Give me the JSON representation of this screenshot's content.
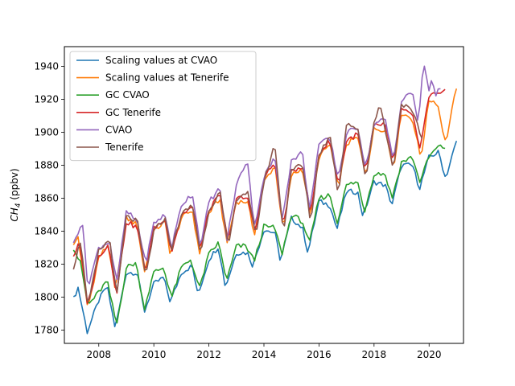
{
  "chart_data": {
    "type": "line",
    "title": "",
    "xlabel": "",
    "ylabel": {
      "main": "CH",
      "sub": "4",
      "unit": " (ppbv)"
    },
    "xlim": [
      2006.75,
      2021.25
    ],
    "ylim": [
      1772,
      1952
    ],
    "xticks": [
      2008,
      2010,
      2012,
      2014,
      2016,
      2018,
      2020
    ],
    "xtick_labels": [
      "2008",
      "2010",
      "2012",
      "2014",
      "2016",
      "2018",
      "2020"
    ],
    "yticks": [
      1780,
      1800,
      1820,
      1840,
      1860,
      1880,
      1900,
      1920,
      1940
    ],
    "ytick_labels": [
      "1780",
      "1800",
      "1820",
      "1840",
      "1860",
      "1880",
      "1900",
      "1920",
      "1940"
    ],
    "grid": false,
    "legend_position": "top-left",
    "series": [
      {
        "name": "Scaling values at CVAO",
        "color": "#1f77b4",
        "start": 2007.08,
        "end": 2021.0,
        "amp": 10.0,
        "phase": -0.6,
        "points": [
          [
            2007.08,
            1799
          ],
          [
            2007.25,
            1806
          ],
          [
            2007.58,
            1779
          ],
          [
            2008.0,
            1798
          ],
          [
            2008.3,
            1807
          ],
          [
            2008.6,
            1781
          ],
          [
            2009.0,
            1815
          ],
          [
            2009.4,
            1815
          ],
          [
            2009.65,
            1791
          ],
          [
            2010.0,
            1808
          ],
          [
            2010.35,
            1812
          ],
          [
            2010.6,
            1797
          ],
          [
            2011.0,
            1815
          ],
          [
            2011.4,
            1819
          ],
          [
            2011.6,
            1801
          ],
          [
            2012.0,
            1823
          ],
          [
            2012.35,
            1831
          ],
          [
            2012.6,
            1806
          ],
          [
            2013.0,
            1827
          ],
          [
            2013.4,
            1827
          ],
          [
            2013.6,
            1819
          ],
          [
            2014.0,
            1841
          ],
          [
            2014.4,
            1839
          ],
          [
            2014.6,
            1822
          ],
          [
            2015.0,
            1848
          ],
          [
            2015.4,
            1842
          ],
          [
            2015.6,
            1827
          ],
          [
            2016.0,
            1858
          ],
          [
            2016.4,
            1856
          ],
          [
            2016.65,
            1841
          ],
          [
            2017.0,
            1864
          ],
          [
            2017.4,
            1864
          ],
          [
            2017.6,
            1849
          ],
          [
            2018.0,
            1870
          ],
          [
            2018.4,
            1868
          ],
          [
            2018.65,
            1856
          ],
          [
            2019.0,
            1880
          ],
          [
            2019.4,
            1880
          ],
          [
            2019.65,
            1866
          ],
          [
            2020.0,
            1885
          ],
          [
            2020.35,
            1888
          ],
          [
            2020.6,
            1872
          ],
          [
            2021.0,
            1895
          ]
        ]
      },
      {
        "name": "Scaling values at Tenerife",
        "color": "#ff7f0e",
        "start": 2007.08,
        "end": 2021.0,
        "amp": 12.0,
        "phase": -0.3,
        "points": [
          [
            2007.08,
            1831
          ],
          [
            2007.25,
            1837
          ],
          [
            2007.6,
            1793
          ],
          [
            2008.0,
            1824
          ],
          [
            2008.35,
            1832
          ],
          [
            2008.6,
            1803
          ],
          [
            2009.0,
            1848
          ],
          [
            2009.4,
            1844
          ],
          [
            2009.65,
            1815
          ],
          [
            2010.0,
            1840
          ],
          [
            2010.4,
            1846
          ],
          [
            2010.6,
            1826
          ],
          [
            2011.0,
            1848
          ],
          [
            2011.4,
            1853
          ],
          [
            2011.65,
            1826
          ],
          [
            2012.0,
            1851
          ],
          [
            2012.4,
            1860
          ],
          [
            2012.65,
            1832
          ],
          [
            2013.0,
            1858
          ],
          [
            2013.4,
            1858
          ],
          [
            2013.65,
            1838
          ],
          [
            2014.0,
            1870
          ],
          [
            2014.4,
            1880
          ],
          [
            2014.7,
            1840
          ],
          [
            2015.0,
            1874
          ],
          [
            2015.4,
            1878
          ],
          [
            2015.7,
            1848
          ],
          [
            2016.0,
            1885
          ],
          [
            2016.4,
            1893
          ],
          [
            2016.7,
            1866
          ],
          [
            2017.0,
            1893
          ],
          [
            2017.4,
            1897
          ],
          [
            2017.7,
            1874
          ],
          [
            2018.0,
            1902
          ],
          [
            2018.4,
            1902
          ],
          [
            2018.7,
            1878
          ],
          [
            2019.0,
            1912
          ],
          [
            2019.4,
            1908
          ],
          [
            2019.7,
            1884
          ],
          [
            2020.0,
            1920
          ],
          [
            2020.3,
            1918
          ],
          [
            2020.6,
            1893
          ],
          [
            2021.0,
            1928
          ]
        ]
      },
      {
        "name": "GC CVAO",
        "color": "#2ca02c",
        "start": 2007.08,
        "end": 2020.6,
        "amp": 10.0,
        "phase": -0.6,
        "points": [
          [
            2007.08,
            1830
          ],
          [
            2007.35,
            1820
          ],
          [
            2007.6,
            1795
          ],
          [
            2008.0,
            1803
          ],
          [
            2008.3,
            1810
          ],
          [
            2008.65,
            1783
          ],
          [
            2009.0,
            1818
          ],
          [
            2009.35,
            1821
          ],
          [
            2009.65,
            1793
          ],
          [
            2010.0,
            1815
          ],
          [
            2010.35,
            1818
          ],
          [
            2010.65,
            1800
          ],
          [
            2011.0,
            1818
          ],
          [
            2011.35,
            1823
          ],
          [
            2011.65,
            1805
          ],
          [
            2012.0,
            1826
          ],
          [
            2012.35,
            1833
          ],
          [
            2012.65,
            1810
          ],
          [
            2013.0,
            1831
          ],
          [
            2013.35,
            1831
          ],
          [
            2013.65,
            1822
          ],
          [
            2014.0,
            1843
          ],
          [
            2014.4,
            1842
          ],
          [
            2014.65,
            1826
          ],
          [
            2015.0,
            1850
          ],
          [
            2015.4,
            1846
          ],
          [
            2015.65,
            1832
          ],
          [
            2016.0,
            1860
          ],
          [
            2016.4,
            1862
          ],
          [
            2016.65,
            1845
          ],
          [
            2017.0,
            1868
          ],
          [
            2017.4,
            1870
          ],
          [
            2017.65,
            1852
          ],
          [
            2018.0,
            1875
          ],
          [
            2018.4,
            1875
          ],
          [
            2018.65,
            1860
          ],
          [
            2019.0,
            1882
          ],
          [
            2019.4,
            1885
          ],
          [
            2019.65,
            1870
          ],
          [
            2020.0,
            1885
          ],
          [
            2020.3,
            1891
          ],
          [
            2020.6,
            1891
          ]
        ]
      },
      {
        "name": "GC Tenerife",
        "color": "#d62728",
        "start": 2007.08,
        "end": 2020.6,
        "amp": 12.0,
        "phase": -0.3,
        "points": [
          [
            2007.08,
            1825
          ],
          [
            2007.3,
            1833
          ],
          [
            2007.6,
            1795
          ],
          [
            2008.0,
            1825
          ],
          [
            2008.35,
            1832
          ],
          [
            2008.65,
            1802
          ],
          [
            2009.0,
            1846
          ],
          [
            2009.4,
            1842
          ],
          [
            2009.7,
            1815
          ],
          [
            2010.0,
            1842
          ],
          [
            2010.4,
            1847
          ],
          [
            2010.65,
            1828
          ],
          [
            2011.0,
            1850
          ],
          [
            2011.4,
            1855
          ],
          [
            2011.7,
            1829
          ],
          [
            2012.0,
            1853
          ],
          [
            2012.4,
            1862
          ],
          [
            2012.7,
            1833
          ],
          [
            2013.0,
            1860
          ],
          [
            2013.4,
            1860
          ],
          [
            2013.7,
            1840
          ],
          [
            2014.0,
            1872
          ],
          [
            2014.4,
            1882
          ],
          [
            2014.7,
            1842
          ],
          [
            2015.0,
            1876
          ],
          [
            2015.4,
            1880
          ],
          [
            2015.7,
            1850
          ],
          [
            2016.0,
            1887
          ],
          [
            2016.4,
            1895
          ],
          [
            2016.7,
            1868
          ],
          [
            2017.0,
            1895
          ],
          [
            2017.4,
            1899
          ],
          [
            2017.7,
            1876
          ],
          [
            2018.0,
            1904
          ],
          [
            2018.4,
            1905
          ],
          [
            2018.7,
            1881
          ],
          [
            2019.0,
            1914
          ],
          [
            2019.4,
            1910
          ],
          [
            2019.65,
            1890
          ],
          [
            2020.0,
            1922
          ],
          [
            2020.3,
            1924
          ],
          [
            2020.6,
            1926
          ]
        ]
      },
      {
        "name": "CVAO",
        "color": "#9467bd",
        "start": 2007.08,
        "end": 2020.45,
        "amp": 12.0,
        "phase": -0.3,
        "points": [
          [
            2007.08,
            1832
          ],
          [
            2007.4,
            1847
          ],
          [
            2007.6,
            1806
          ],
          [
            2008.0,
            1830
          ],
          [
            2008.4,
            1834
          ],
          [
            2008.65,
            1808
          ],
          [
            2009.0,
            1852
          ],
          [
            2009.4,
            1846
          ],
          [
            2009.7,
            1820
          ],
          [
            2010.0,
            1845
          ],
          [
            2010.4,
            1850
          ],
          [
            2010.65,
            1830
          ],
          [
            2011.0,
            1856
          ],
          [
            2011.4,
            1863
          ],
          [
            2011.7,
            1830
          ],
          [
            2012.0,
            1858
          ],
          [
            2012.4,
            1866
          ],
          [
            2012.65,
            1834
          ],
          [
            2013.0,
            1868
          ],
          [
            2013.4,
            1884
          ],
          [
            2013.65,
            1842
          ],
          [
            2014.0,
            1873
          ],
          [
            2014.4,
            1885
          ],
          [
            2014.65,
            1847
          ],
          [
            2015.0,
            1883
          ],
          [
            2015.4,
            1888
          ],
          [
            2015.65,
            1852
          ],
          [
            2016.0,
            1893
          ],
          [
            2016.4,
            1896
          ],
          [
            2016.7,
            1872
          ],
          [
            2017.0,
            1899
          ],
          [
            2017.4,
            1904
          ],
          [
            2017.7,
            1878
          ],
          [
            2018.0,
            1905
          ],
          [
            2018.4,
            1908
          ],
          [
            2018.7,
            1883
          ],
          [
            2019.0,
            1919
          ],
          [
            2019.4,
            1925
          ],
          [
            2019.6,
            1904
          ],
          [
            2019.8,
            1943
          ],
          [
            2020.0,
            1925
          ],
          [
            2020.1,
            1934
          ],
          [
            2020.25,
            1922
          ],
          [
            2020.45,
            1929
          ]
        ]
      },
      {
        "name": "Tenerife",
        "color": "#8c564b",
        "start": 2007.08,
        "end": 2019.75,
        "amp": 12.0,
        "phase": -0.3,
        "points": [
          [
            2007.08,
            1818
          ],
          [
            2007.35,
            1835
          ],
          [
            2007.6,
            1793
          ],
          [
            2008.0,
            1828
          ],
          [
            2008.4,
            1835
          ],
          [
            2008.65,
            1800
          ],
          [
            2009.0,
            1849
          ],
          [
            2009.4,
            1846
          ],
          [
            2009.7,
            1812
          ],
          [
            2010.0,
            1840
          ],
          [
            2010.4,
            1848
          ],
          [
            2010.65,
            1829
          ],
          [
            2011.0,
            1850
          ],
          [
            2011.4,
            1856
          ],
          [
            2011.7,
            1826
          ],
          [
            2012.0,
            1853
          ],
          [
            2012.4,
            1864
          ],
          [
            2012.7,
            1830
          ],
          [
            2013.0,
            1860
          ],
          [
            2013.4,
            1864
          ],
          [
            2013.7,
            1837
          ],
          [
            2014.0,
            1870
          ],
          [
            2014.4,
            1893
          ],
          [
            2014.7,
            1838
          ],
          [
            2015.0,
            1878
          ],
          [
            2015.4,
            1880
          ],
          [
            2015.7,
            1845
          ],
          [
            2016.0,
            1887
          ],
          [
            2016.4,
            1898
          ],
          [
            2016.7,
            1862
          ],
          [
            2017.0,
            1906
          ],
          [
            2017.4,
            1902
          ],
          [
            2017.7,
            1872
          ],
          [
            2018.0,
            1906
          ],
          [
            2018.2,
            1918
          ],
          [
            2018.4,
            1902
          ],
          [
            2018.7,
            1878
          ],
          [
            2019.0,
            1918
          ],
          [
            2019.4,
            1912
          ],
          [
            2019.75,
            1896
          ]
        ]
      }
    ]
  }
}
